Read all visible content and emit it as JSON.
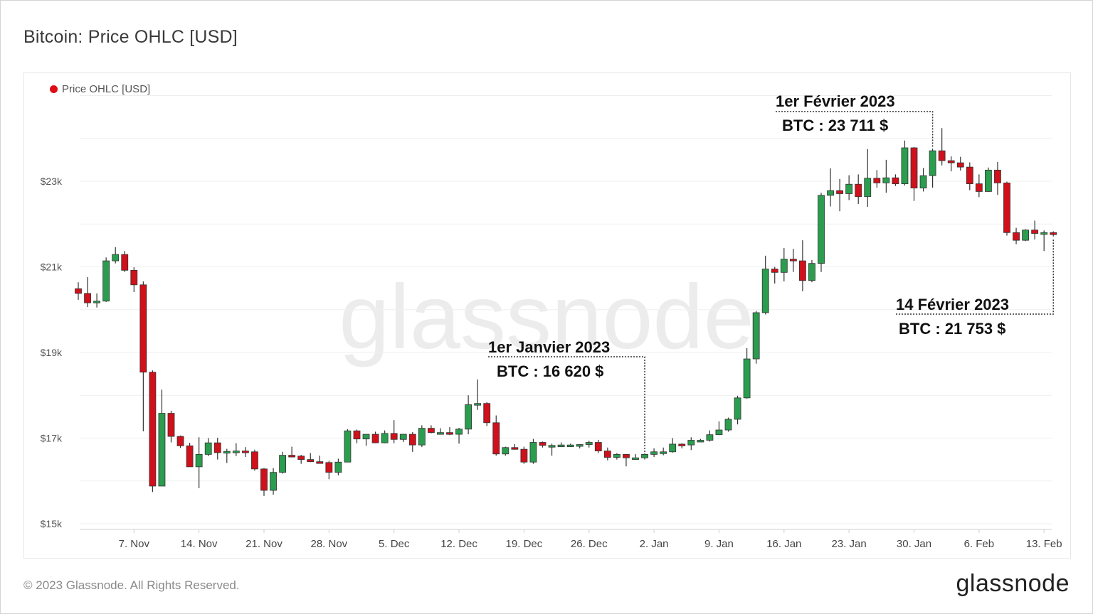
{
  "title": "Bitcoin: Price OHLC [USD]",
  "legend_label": "Price OHLC [USD]",
  "watermark": "glassnode",
  "footer": {
    "copyright": "© 2023 Glassnode. All Rights Reserved.",
    "logo": "glassnode"
  },
  "colors": {
    "up": "#2a9d4e",
    "down": "#d0101a",
    "legend_dot": "#e00d15",
    "watermark": "#ececec"
  },
  "annotations": [
    {
      "id": "jan1",
      "date_label": "1er Janvier 2023",
      "price_label": "BTC : 16 620 $"
    },
    {
      "id": "feb1",
      "date_label": "1er Février 2023",
      "price_label": "BTC : 23 711 $"
    },
    {
      "id": "feb14",
      "date_label": "14 Février 2023",
      "price_label": "BTC : 21 753 $"
    }
  ],
  "chart_data": {
    "type": "candlestick",
    "series_name": "Price OHLC [USD]",
    "y_ticks": [
      {
        "label": "$15k",
        "value": 15000
      },
      {
        "label": "$17k",
        "value": 17000
      },
      {
        "label": "$19k",
        "value": 19000
      },
      {
        "label": "$21k",
        "value": 21000
      },
      {
        "label": "$23k",
        "value": 23000
      }
    ],
    "ylim": [
      15000,
      25500
    ],
    "x_ticks": [
      {
        "label": "7. Nov",
        "date": "2022-11-07"
      },
      {
        "label": "14. Nov",
        "date": "2022-11-14"
      },
      {
        "label": "21. Nov",
        "date": "2022-11-21"
      },
      {
        "label": "28. Nov",
        "date": "2022-11-28"
      },
      {
        "label": "5. Dec",
        "date": "2022-12-05"
      },
      {
        "label": "12. Dec",
        "date": "2022-12-12"
      },
      {
        "label": "19. Dec",
        "date": "2022-12-19"
      },
      {
        "label": "26. Dec",
        "date": "2022-12-26"
      },
      {
        "label": "2. Jan",
        "date": "2023-01-02"
      },
      {
        "label": "9. Jan",
        "date": "2023-01-09"
      },
      {
        "label": "16. Jan",
        "date": "2023-01-16"
      },
      {
        "label": "23. Jan",
        "date": "2023-01-23"
      },
      {
        "label": "30. Jan",
        "date": "2023-01-30"
      },
      {
        "label": "6. Feb",
        "date": "2023-02-06"
      },
      {
        "label": "13. Feb",
        "date": "2023-02-13"
      }
    ],
    "x_range": [
      "2022-11-01",
      "2023-02-15"
    ],
    "candles": [
      {
        "date": "2022-11-01",
        "o": 20490,
        "h": 20640,
        "l": 20230,
        "c": 20380
      },
      {
        "date": "2022-11-02",
        "o": 20380,
        "h": 20760,
        "l": 20060,
        "c": 20160
      },
      {
        "date": "2022-11-03",
        "o": 20160,
        "h": 20380,
        "l": 20050,
        "c": 20200
      },
      {
        "date": "2022-11-04",
        "o": 20200,
        "h": 21220,
        "l": 20180,
        "c": 21140
      },
      {
        "date": "2022-11-05",
        "o": 21140,
        "h": 21460,
        "l": 21080,
        "c": 21290
      },
      {
        "date": "2022-11-06",
        "o": 21290,
        "h": 21370,
        "l": 20880,
        "c": 20920
      },
      {
        "date": "2022-11-07",
        "o": 20920,
        "h": 20990,
        "l": 20410,
        "c": 20580
      },
      {
        "date": "2022-11-08",
        "o": 20580,
        "h": 20660,
        "l": 17160,
        "c": 18540
      },
      {
        "date": "2022-11-09",
        "o": 18540,
        "h": 18580,
        "l": 15740,
        "c": 15880
      },
      {
        "date": "2022-11-10",
        "o": 15880,
        "h": 18130,
        "l": 15880,
        "c": 17580
      },
      {
        "date": "2022-11-11",
        "o": 17580,
        "h": 17640,
        "l": 16900,
        "c": 17040
      },
      {
        "date": "2022-11-12",
        "o": 17040,
        "h": 17060,
        "l": 16770,
        "c": 16820
      },
      {
        "date": "2022-11-13",
        "o": 16820,
        "h": 16890,
        "l": 16330,
        "c": 16330
      },
      {
        "date": "2022-11-14",
        "o": 16330,
        "h": 17020,
        "l": 15830,
        "c": 16620
      },
      {
        "date": "2022-11-15",
        "o": 16620,
        "h": 17000,
        "l": 16580,
        "c": 16890
      },
      {
        "date": "2022-11-16",
        "o": 16890,
        "h": 17010,
        "l": 16500,
        "c": 16660
      },
      {
        "date": "2022-11-17",
        "o": 16660,
        "h": 16750,
        "l": 16420,
        "c": 16690
      },
      {
        "date": "2022-11-18",
        "o": 16690,
        "h": 16880,
        "l": 16580,
        "c": 16700
      },
      {
        "date": "2022-11-19",
        "o": 16700,
        "h": 16790,
        "l": 16560,
        "c": 16680
      },
      {
        "date": "2022-11-20",
        "o": 16680,
        "h": 16730,
        "l": 16240,
        "c": 16280
      },
      {
        "date": "2022-11-21",
        "o": 16280,
        "h": 16300,
        "l": 15650,
        "c": 15780
      },
      {
        "date": "2022-11-22",
        "o": 15780,
        "h": 16300,
        "l": 15680,
        "c": 16200
      },
      {
        "date": "2022-11-23",
        "o": 16200,
        "h": 16680,
        "l": 16170,
        "c": 16600
      },
      {
        "date": "2022-11-24",
        "o": 16600,
        "h": 16800,
        "l": 16550,
        "c": 16580
      },
      {
        "date": "2022-11-25",
        "o": 16580,
        "h": 16610,
        "l": 16400,
        "c": 16500
      },
      {
        "date": "2022-11-26",
        "o": 16500,
        "h": 16650,
        "l": 16440,
        "c": 16450
      },
      {
        "date": "2022-11-27",
        "o": 16450,
        "h": 16590,
        "l": 16420,
        "c": 16430
      },
      {
        "date": "2022-11-28",
        "o": 16430,
        "h": 16470,
        "l": 16040,
        "c": 16200
      },
      {
        "date": "2022-11-29",
        "o": 16200,
        "h": 16520,
        "l": 16130,
        "c": 16440
      },
      {
        "date": "2022-11-30",
        "o": 16440,
        "h": 17210,
        "l": 16440,
        "c": 17170
      },
      {
        "date": "2022-12-01",
        "o": 17170,
        "h": 17200,
        "l": 16880,
        "c": 16980
      },
      {
        "date": "2022-12-02",
        "o": 16980,
        "h": 17090,
        "l": 16820,
        "c": 17090
      },
      {
        "date": "2022-12-03",
        "o": 17090,
        "h": 17150,
        "l": 16880,
        "c": 16890
      },
      {
        "date": "2022-12-04",
        "o": 16890,
        "h": 17180,
        "l": 16880,
        "c": 17110
      },
      {
        "date": "2022-12-05",
        "o": 17110,
        "h": 17420,
        "l": 16880,
        "c": 16970
      },
      {
        "date": "2022-12-06",
        "o": 16970,
        "h": 17100,
        "l": 16910,
        "c": 17090
      },
      {
        "date": "2022-12-07",
        "o": 17090,
        "h": 17140,
        "l": 16680,
        "c": 16840
      },
      {
        "date": "2022-12-08",
        "o": 16840,
        "h": 17300,
        "l": 16790,
        "c": 17230
      },
      {
        "date": "2022-12-09",
        "o": 17230,
        "h": 17300,
        "l": 17110,
        "c": 17130
      },
      {
        "date": "2022-12-10",
        "o": 17130,
        "h": 17230,
        "l": 17090,
        "c": 17130
      },
      {
        "date": "2022-12-11",
        "o": 17130,
        "h": 17260,
        "l": 17070,
        "c": 17090
      },
      {
        "date": "2022-12-12",
        "o": 17090,
        "h": 17240,
        "l": 16870,
        "c": 17210
      },
      {
        "date": "2022-12-13",
        "o": 17210,
        "h": 18000,
        "l": 17090,
        "c": 17780
      },
      {
        "date": "2022-12-14",
        "o": 17780,
        "h": 18370,
        "l": 17660,
        "c": 17810
      },
      {
        "date": "2022-12-15",
        "o": 17810,
        "h": 17840,
        "l": 17280,
        "c": 17360
      },
      {
        "date": "2022-12-16",
        "o": 17360,
        "h": 17530,
        "l": 16590,
        "c": 16630
      },
      {
        "date": "2022-12-17",
        "o": 16630,
        "h": 16800,
        "l": 16590,
        "c": 16780
      },
      {
        "date": "2022-12-18",
        "o": 16780,
        "h": 16860,
        "l": 16730,
        "c": 16740
      },
      {
        "date": "2022-12-19",
        "o": 16740,
        "h": 16800,
        "l": 16400,
        "c": 16440
      },
      {
        "date": "2022-12-20",
        "o": 16440,
        "h": 16980,
        "l": 16400,
        "c": 16900
      },
      {
        "date": "2022-12-21",
        "o": 16900,
        "h": 16920,
        "l": 16780,
        "c": 16830
      },
      {
        "date": "2022-12-22",
        "o": 16830,
        "h": 16870,
        "l": 16590,
        "c": 16830
      },
      {
        "date": "2022-12-23",
        "o": 16830,
        "h": 16900,
        "l": 16790,
        "c": 16840
      },
      {
        "date": "2022-12-24",
        "o": 16840,
        "h": 16870,
        "l": 16800,
        "c": 16840
      },
      {
        "date": "2022-12-25",
        "o": 16840,
        "h": 16860,
        "l": 16760,
        "c": 16850
      },
      {
        "date": "2022-12-26",
        "o": 16850,
        "h": 16940,
        "l": 16780,
        "c": 16900
      },
      {
        "date": "2022-12-27",
        "o": 16900,
        "h": 16960,
        "l": 16650,
        "c": 16700
      },
      {
        "date": "2022-12-28",
        "o": 16700,
        "h": 16780,
        "l": 16480,
        "c": 16550
      },
      {
        "date": "2022-12-29",
        "o": 16550,
        "h": 16650,
        "l": 16500,
        "c": 16620
      },
      {
        "date": "2022-12-30",
        "o": 16620,
        "h": 16630,
        "l": 16340,
        "c": 16540
      },
      {
        "date": "2022-12-31",
        "o": 16540,
        "h": 16630,
        "l": 16500,
        "c": 16540
      },
      {
        "date": "2023-01-01",
        "o": 16540,
        "h": 16630,
        "l": 16500,
        "c": 16620
      },
      {
        "date": "2023-01-02",
        "o": 16620,
        "h": 16760,
        "l": 16560,
        "c": 16680
      },
      {
        "date": "2023-01-03",
        "o": 16680,
        "h": 16780,
        "l": 16600,
        "c": 16680
      },
      {
        "date": "2023-01-04",
        "o": 16680,
        "h": 17000,
        "l": 16660,
        "c": 16860
      },
      {
        "date": "2023-01-05",
        "o": 16860,
        "h": 16880,
        "l": 16760,
        "c": 16840
      },
      {
        "date": "2023-01-06",
        "o": 16840,
        "h": 17020,
        "l": 16720,
        "c": 16950
      },
      {
        "date": "2023-01-07",
        "o": 16950,
        "h": 16980,
        "l": 16910,
        "c": 16950
      },
      {
        "date": "2023-01-08",
        "o": 16950,
        "h": 17180,
        "l": 16920,
        "c": 17080
      },
      {
        "date": "2023-01-09",
        "o": 17080,
        "h": 17390,
        "l": 17070,
        "c": 17190
      },
      {
        "date": "2023-01-10",
        "o": 17190,
        "h": 17480,
        "l": 17150,
        "c": 17440
      },
      {
        "date": "2023-01-11",
        "o": 17440,
        "h": 17990,
        "l": 17320,
        "c": 17940
      },
      {
        "date": "2023-01-12",
        "o": 17940,
        "h": 19100,
        "l": 17920,
        "c": 18850
      },
      {
        "date": "2023-01-13",
        "o": 18850,
        "h": 19970,
        "l": 18740,
        "c": 19930
      },
      {
        "date": "2023-01-14",
        "o": 19930,
        "h": 21260,
        "l": 19890,
        "c": 20950
      },
      {
        "date": "2023-01-15",
        "o": 20950,
        "h": 21000,
        "l": 20610,
        "c": 20870
      },
      {
        "date": "2023-01-16",
        "o": 20870,
        "h": 21440,
        "l": 20660,
        "c": 21180
      },
      {
        "date": "2023-01-17",
        "o": 21180,
        "h": 21420,
        "l": 20880,
        "c": 21140
      },
      {
        "date": "2023-01-18",
        "o": 21140,
        "h": 21620,
        "l": 20430,
        "c": 20680
      },
      {
        "date": "2023-01-19",
        "o": 20680,
        "h": 21160,
        "l": 20640,
        "c": 21080
      },
      {
        "date": "2023-01-20",
        "o": 21080,
        "h": 22730,
        "l": 20880,
        "c": 22670
      },
      {
        "date": "2023-01-21",
        "o": 22670,
        "h": 23300,
        "l": 22410,
        "c": 22780
      },
      {
        "date": "2023-01-22",
        "o": 22780,
        "h": 23050,
        "l": 22300,
        "c": 22710
      },
      {
        "date": "2023-01-23",
        "o": 22710,
        "h": 23140,
        "l": 22560,
        "c": 22930
      },
      {
        "date": "2023-01-24",
        "o": 22930,
        "h": 23160,
        "l": 22470,
        "c": 22640
      },
      {
        "date": "2023-01-25",
        "o": 22640,
        "h": 23750,
        "l": 22400,
        "c": 23070
      },
      {
        "date": "2023-01-26",
        "o": 23070,
        "h": 23260,
        "l": 22850,
        "c": 22960
      },
      {
        "date": "2023-01-27",
        "o": 22960,
        "h": 23500,
        "l": 22730,
        "c": 23080
      },
      {
        "date": "2023-01-28",
        "o": 23080,
        "h": 23160,
        "l": 22890,
        "c": 22940
      },
      {
        "date": "2023-01-29",
        "o": 22940,
        "h": 23950,
        "l": 22900,
        "c": 23780
      },
      {
        "date": "2023-01-30",
        "o": 23780,
        "h": 23800,
        "l": 22540,
        "c": 22840
      },
      {
        "date": "2023-01-31",
        "o": 22840,
        "h": 23310,
        "l": 22760,
        "c": 23130
      },
      {
        "date": "2023-02-01",
        "o": 23130,
        "h": 23760,
        "l": 22850,
        "c": 23711
      },
      {
        "date": "2023-02-02",
        "o": 23711,
        "h": 24240,
        "l": 23370,
        "c": 23480
      },
      {
        "date": "2023-02-03",
        "o": 23480,
        "h": 23580,
        "l": 23230,
        "c": 23430
      },
      {
        "date": "2023-02-04",
        "o": 23430,
        "h": 23570,
        "l": 23250,
        "c": 23330
      },
      {
        "date": "2023-02-05",
        "o": 23330,
        "h": 23440,
        "l": 22790,
        "c": 22940
      },
      {
        "date": "2023-02-06",
        "o": 22940,
        "h": 23160,
        "l": 22630,
        "c": 22760
      },
      {
        "date": "2023-02-07",
        "o": 22760,
        "h": 23320,
        "l": 22750,
        "c": 23260
      },
      {
        "date": "2023-02-08",
        "o": 23260,
        "h": 23450,
        "l": 22680,
        "c": 22960
      },
      {
        "date": "2023-02-09",
        "o": 22960,
        "h": 22990,
        "l": 21730,
        "c": 21800
      },
      {
        "date": "2023-02-10",
        "o": 21800,
        "h": 21910,
        "l": 21530,
        "c": 21620
      },
      {
        "date": "2023-02-11",
        "o": 21620,
        "h": 21880,
        "l": 21600,
        "c": 21860
      },
      {
        "date": "2023-02-12",
        "o": 21860,
        "h": 22080,
        "l": 21640,
        "c": 21780
      },
      {
        "date": "2023-02-13",
        "o": 21780,
        "h": 21850,
        "l": 21370,
        "c": 21800
      },
      {
        "date": "2023-02-14",
        "o": 21800,
        "h": 21830,
        "l": 21710,
        "c": 21753
      }
    ]
  }
}
